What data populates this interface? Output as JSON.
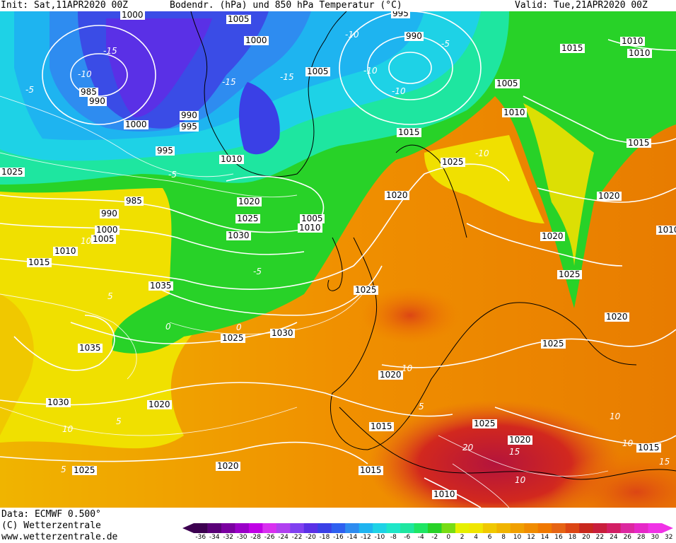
{
  "header": {
    "init": "Init: Sat,11APR2020 00Z",
    "title": "Bodendr. (hPa) und 850 hPa Temperatur (°C)",
    "valid": "Valid: Tue,21APR2020 00Z"
  },
  "footer": {
    "data_line": "Data: ECMWF  0.500°",
    "copyright": "(C) Wetterzentrale",
    "website": "www.wetterzentrale.de"
  },
  "colors": {
    "ocean_green": "#2ed12e",
    "warm_orange": "#f0a000",
    "hot_red": "#c8141e",
    "cold_blue": "#3a4ce6",
    "cold_purple": "#5a1fb8",
    "isobar": "#ffffff",
    "coastline": "#000000"
  },
  "scale": {
    "ticks": [
      "-36",
      "-34",
      "-32",
      "-30",
      "-28",
      "-26",
      "-24",
      "-22",
      "-20",
      "-18",
      "-16",
      "-14",
      "-12",
      "-10",
      "-8",
      "-6",
      "-4",
      "-2",
      "0",
      "2",
      "4",
      "6",
      "8",
      "10",
      "12",
      "14",
      "16",
      "18",
      "20",
      "22",
      "24",
      "26",
      "28",
      "30",
      "32"
    ],
    "colors": [
      "#3c0050",
      "#5a0078",
      "#7a00a0",
      "#9a00c8",
      "#c000e6",
      "#d830f0",
      "#b040f0",
      "#8040f0",
      "#5a30e6",
      "#3a40e6",
      "#2e60f0",
      "#2e8cf0",
      "#1eb4f0",
      "#1ed2e6",
      "#1ee6c8",
      "#1ee6a0",
      "#1ee664",
      "#28d228",
      "#78dc14",
      "#e6f000",
      "#f0e600",
      "#f0c800",
      "#f0b400",
      "#f0a000",
      "#f08c00",
      "#f07800",
      "#e66414",
      "#dc4614",
      "#c8281e",
      "#c81e3c",
      "#d21e64",
      "#dc28a0",
      "#e628c8",
      "#f032e6"
    ]
  },
  "pressure_labels": [
    "1000",
    "1005",
    "1000",
    "995",
    "990",
    "1005",
    "985",
    "990",
    "1000",
    "990",
    "995",
    "995",
    "1010",
    "1015",
    "1025",
    "1010",
    "1005",
    "1010",
    "1015",
    "1020",
    "1025",
    "1005",
    "1010",
    "1025",
    "1020",
    "1030",
    "1035",
    "985",
    "990",
    "1000",
    "1005",
    "1010",
    "1015",
    "1035",
    "1025",
    "1030",
    "1035",
    "1030",
    "1020",
    "1020",
    "1025",
    "1020",
    "1015",
    "1020",
    "1015",
    "1020",
    "1015",
    "1010",
    "1010",
    "1015",
    "1020",
    "1025",
    "1020",
    "1025",
    "1025",
    "1025",
    "1010",
    "1010",
    "1015",
    "1015"
  ],
  "isotherm_labels": [
    "-10",
    "-15",
    "-10",
    "-5",
    "-10",
    "-15",
    "-5",
    "-15",
    "-10",
    "-10",
    "-5",
    "-5",
    "5",
    "0",
    "5",
    "10",
    "5",
    "10",
    "10",
    "5",
    "0",
    "10",
    "10",
    "15",
    "20",
    "10",
    "15"
  ]
}
